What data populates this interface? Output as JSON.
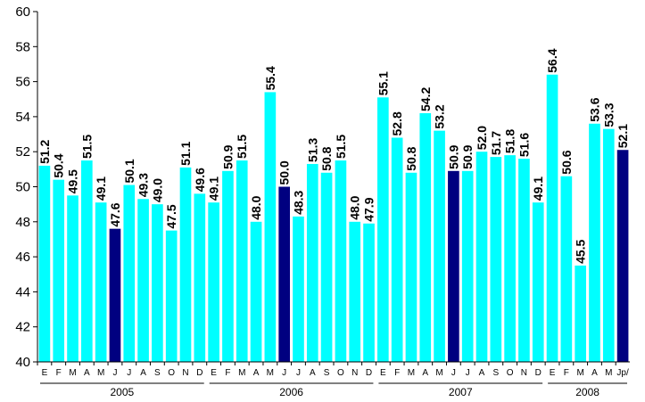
{
  "chart_data": {
    "type": "bar",
    "ylim": [
      40,
      60
    ],
    "yticks": [
      "40",
      "42",
      "44",
      "46",
      "48",
      "50",
      "52",
      "54",
      "56",
      "58",
      "60"
    ],
    "grid": false,
    "legend": "none",
    "colors": {
      "bar": "#00FFFF",
      "highlight": "#000080",
      "axis": "#000000"
    },
    "categories": [
      "E",
      "F",
      "M",
      "A",
      "M",
      "J",
      "J",
      "A",
      "S",
      "O",
      "N",
      "D",
      "E",
      "F",
      "M",
      "A",
      "M",
      "J",
      "J",
      "A",
      "S",
      "O",
      "N",
      "D",
      "E",
      "F",
      "M",
      "A",
      "M",
      "J",
      "J",
      "A",
      "S",
      "O",
      "N",
      "D",
      "E",
      "F",
      "M",
      "A",
      "M",
      "Jp/"
    ],
    "years": [
      {
        "label": "2005",
        "count": 12
      },
      {
        "label": "2006",
        "count": 12
      },
      {
        "label": "2007",
        "count": 12
      },
      {
        "label": "2008",
        "count": 6
      }
    ],
    "values": [
      51.2,
      50.4,
      49.5,
      51.5,
      49.1,
      47.6,
      50.1,
      49.3,
      49.0,
      47.5,
      51.1,
      49.6,
      49.1,
      50.9,
      51.5,
      48.0,
      55.4,
      50.0,
      48.3,
      51.3,
      50.8,
      51.5,
      48.0,
      47.9,
      55.1,
      52.8,
      50.8,
      54.2,
      53.2,
      50.9,
      50.9,
      52.0,
      51.7,
      51.8,
      51.6,
      49.1,
      56.4,
      50.6,
      45.5,
      53.6,
      53.3,
      52.1
    ],
    "value_labels": [
      "51.2",
      "50.4",
      "49.5",
      "51.5",
      "49.1",
      "47.6",
      "50.1",
      "49.3",
      "49.0",
      "47.5",
      "51.1",
      "49.6",
      "49.1",
      "50.9",
      "51.5",
      "48.0",
      "55.4",
      "50.0",
      "48.3",
      "51.3",
      "50.8",
      "51.5",
      "48.0",
      "47.9",
      "55.1",
      "52.8",
      "50.8",
      "54.2",
      "53.2",
      "50.9",
      "50.9",
      "52.0",
      "51.7",
      "51.8",
      "51.6",
      "49.1",
      "56.4",
      "50.6",
      "45.5",
      "53.6",
      "53.3",
      "52.1"
    ],
    "highlight_index": [
      5,
      17,
      29,
      41
    ]
  }
}
